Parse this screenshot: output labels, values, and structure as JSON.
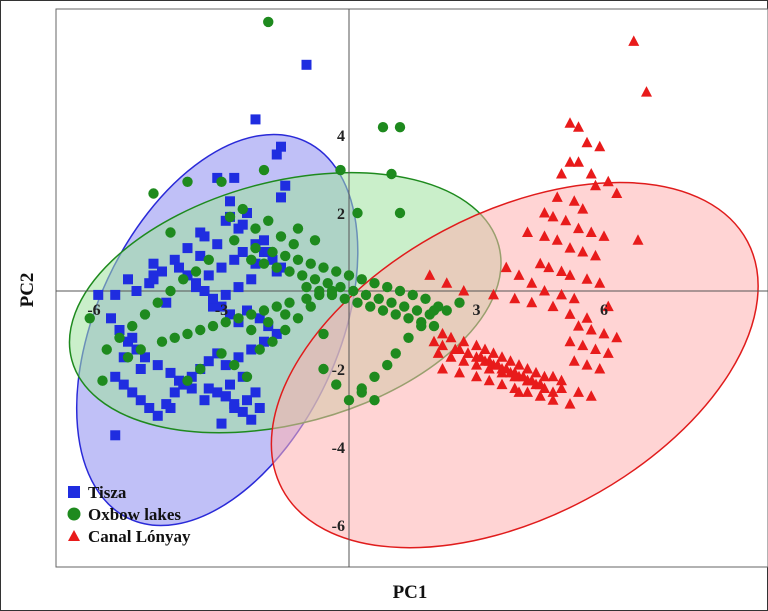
{
  "chart_data": {
    "type": "scatter",
    "xlabel": "PC1",
    "ylabel": "PC2",
    "xlim": [
      -7.3,
      10.4
    ],
    "ylim": [
      -7.2,
      7.1
    ],
    "x_ticks": [
      "-6",
      "-3",
      "3",
      "6"
    ],
    "x_tick_values": [
      -6,
      -3,
      3,
      6
    ],
    "y_ticks": [
      "4",
      "2",
      "-2",
      "-4",
      "-6"
    ],
    "y_tick_values": [
      4,
      2,
      -2,
      -4,
      -6
    ],
    "grid": false,
    "legend_position": "bottom-left",
    "colors": {
      "Tisza": "#1f2de0",
      "Oxbow lakes": "#1e8a1e",
      "Canal Lónyay": "#e81b1b"
    },
    "ellipses": [
      {
        "series": "Tisza",
        "cx": -3.1,
        "cy": -1.0,
        "rx": 4.9,
        "ry": 3.1,
        "angle": 65,
        "fill": "#8c8cf0",
        "stroke": "#2a2ad8"
      },
      {
        "series": "Oxbow lakes",
        "cx": -1.5,
        "cy": -0.3,
        "rx": 5.2,
        "ry": 3.1,
        "angle": 15,
        "fill": "#9fe19f",
        "stroke": "#1e8a1e"
      },
      {
        "series": "Canal Lónyay",
        "cx": 3.9,
        "cy": -1.9,
        "rx": 6.2,
        "ry": 3.9,
        "angle": 28,
        "fill": "#ffb0b0",
        "stroke": "#e01c1c"
      }
    ],
    "series": [
      {
        "name": "Tisza",
        "marker": "square",
        "x": [
          -1.0,
          -1.6,
          -1.7,
          -2.2,
          -3.1,
          -2.7,
          -1.5,
          -1.6,
          -2.8,
          -2.4,
          -2.9,
          -2.6,
          -3.4,
          -3.1,
          -4.6,
          -5.2,
          -5.0,
          -5.5,
          -5.9,
          -4.6,
          -3.5,
          -3.8,
          -4.1,
          -4.4,
          -4.7,
          -4.3,
          -3.6,
          -3.3,
          -3.0,
          -2.7,
          -2.5,
          -2.2,
          -2.0,
          -1.8,
          -1.6,
          -2.3,
          -2.6,
          -2.9,
          -3.2,
          -2.4,
          -2.1,
          -1.9,
          -1.7,
          -2.0,
          -2.3,
          -2.6,
          -2.9,
          -2.5,
          -2.8,
          -3.1,
          -3.4,
          -3.7,
          -4.0,
          -4.2,
          -4.5,
          -4.8,
          -5.0,
          -5.2,
          -5.4,
          -5.6,
          -5.5,
          -5.3,
          -5.1,
          -4.9,
          -4.7,
          -4.5,
          -4.3,
          -4.1,
          -3.9,
          -3.7,
          -3.5,
          -3.3,
          -3.1,
          -2.9,
          -2.7,
          -2.5,
          -2.3,
          -2.1,
          -2.6,
          -2.8,
          -3.0,
          -3.2,
          -3.4,
          -3.6,
          -3.8,
          -4.0,
          -4.6,
          -5.1,
          -5.3,
          -4.2,
          -3.3,
          -3.0,
          -2.7,
          -2.9,
          -2.4,
          -2.2,
          -2.8,
          -3.5,
          -2.5,
          -2.0,
          -1.9,
          -2.2,
          -1.7,
          -4.9,
          -5.5
        ],
        "y": [
          5.8,
          3.7,
          3.5,
          4.4,
          2.9,
          2.9,
          2.7,
          2.4,
          2.3,
          2.0,
          1.8,
          1.6,
          1.4,
          1.2,
          0.7,
          0.3,
          0.0,
          -0.1,
          -0.1,
          0.4,
          0.9,
          1.1,
          0.8,
          0.5,
          0.2,
          -0.3,
          0.1,
          0.4,
          0.6,
          0.8,
          1.0,
          1.2,
          1.0,
          0.8,
          0.6,
          0.3,
          0.1,
          -0.1,
          -0.4,
          -0.5,
          -0.7,
          -0.9,
          -1.1,
          -1.3,
          -1.5,
          -1.7,
          -1.9,
          -2.2,
          -2.4,
          -2.6,
          -2.8,
          -2.5,
          -2.3,
          -2.1,
          -1.9,
          -1.7,
          -1.5,
          -1.3,
          -1.0,
          -0.7,
          -2.2,
          -2.4,
          -2.6,
          -2.8,
          -3.0,
          -3.2,
          -2.9,
          -2.6,
          -2.4,
          -2.2,
          -2.0,
          -1.8,
          -1.6,
          -2.7,
          -2.9,
          -3.1,
          -3.3,
          -3.0,
          -0.8,
          -0.6,
          -0.4,
          -0.2,
          0.0,
          0.2,
          0.4,
          0.6,
          0.3,
          -1.2,
          -1.7,
          -3.0,
          -2.5,
          -3.4,
          -3.0,
          -2.7,
          -2.8,
          -2.6,
          1.9,
          1.5,
          1.7,
          1.3,
          1.0,
          0.7,
          0.5,
          -2.0,
          -3.7
        ]
      },
      {
        "name": "Oxbow lakes",
        "marker": "circle",
        "x": [
          -1.9,
          0.8,
          1.2,
          1.2,
          -4.6,
          -3.0,
          -2.0,
          -3.8,
          -4.2,
          -2.7,
          -2.2,
          -1.8,
          -1.5,
          -1.2,
          -0.9,
          -0.6,
          -0.3,
          0.0,
          0.3,
          0.6,
          0.9,
          1.2,
          1.5,
          1.8,
          2.1,
          2.3,
          -2.3,
          -2.0,
          -1.7,
          -1.4,
          -1.1,
          -0.8,
          -0.5,
          -0.2,
          0.1,
          0.4,
          0.7,
          1.0,
          1.3,
          1.6,
          1.9,
          2.6,
          -1.0,
          -0.7,
          -0.4,
          -0.1,
          0.2,
          0.5,
          0.8,
          1.1,
          1.4,
          1.7,
          2.0,
          -3.3,
          -3.6,
          -3.9,
          -4.2,
          -4.5,
          -4.8,
          -5.1,
          -5.4,
          -5.7,
          -6.1,
          -5.8,
          -5.2,
          -4.9,
          -4.4,
          -4.1,
          -3.8,
          -3.5,
          -3.2,
          -2.9,
          -2.6,
          -2.3,
          -2.0,
          -1.7,
          -1.4,
          -1.0,
          -0.7,
          -0.4,
          -3.0,
          -2.7,
          -2.4,
          -2.1,
          -1.8,
          -1.5,
          -1.2,
          -0.9,
          -0.6,
          -3.5,
          -3.8,
          -2.8,
          -2.5,
          -2.2,
          -1.9,
          -1.6,
          -1.3,
          0.2,
          2.0,
          1.7,
          1.4,
          1.1,
          0.9,
          0.6,
          0.3,
          0.0,
          -0.3,
          -0.6,
          -1.5,
          -1.9,
          -2.3,
          -0.2,
          0.6,
          0.3,
          1.0,
          -0.8,
          -1.2
        ],
        "y": [
          6.9,
          4.2,
          4.2,
          2.0,
          2.5,
          2.8,
          3.1,
          2.8,
          1.5,
          1.3,
          1.1,
          1.0,
          0.9,
          0.8,
          0.7,
          0.6,
          0.5,
          0.4,
          0.3,
          0.2,
          0.1,
          0.0,
          -0.1,
          -0.2,
          -0.4,
          -0.5,
          0.8,
          0.7,
          0.6,
          0.5,
          0.4,
          0.3,
          0.2,
          0.1,
          0.0,
          -0.1,
          -0.2,
          -0.3,
          -0.4,
          -0.5,
          -0.6,
          -0.3,
          0.1,
          0.0,
          -0.1,
          -0.2,
          -0.3,
          -0.4,
          -0.5,
          -0.6,
          -0.7,
          -0.8,
          -0.9,
          0.8,
          0.5,
          0.3,
          0.0,
          -0.3,
          -0.6,
          -0.9,
          -1.2,
          -1.5,
          -0.7,
          -2.3,
          -1.7,
          -1.5,
          -1.3,
          -1.2,
          -1.1,
          -1.0,
          -0.9,
          -0.8,
          -0.7,
          -0.6,
          -0.5,
          -0.4,
          -0.3,
          -0.2,
          -0.1,
          0.0,
          -1.6,
          -1.9,
          -2.2,
          -1.5,
          -1.3,
          -1.0,
          -0.7,
          -0.4,
          -1.1,
          -2.0,
          -2.3,
          1.9,
          2.1,
          1.6,
          1.8,
          1.4,
          1.2,
          2.0,
          -0.5,
          -0.9,
          -1.2,
          -1.6,
          -1.9,
          -2.2,
          -2.5,
          -2.8,
          -2.4,
          -2.0,
          -0.6,
          -0.8,
          -1.0,
          3.1,
          -2.8,
          -2.6,
          3.0,
          1.3,
          1.6
        ]
      },
      {
        "name": "Canal Lónyay",
        "marker": "triangle",
        "x": [
          6.7,
          7.0,
          5.2,
          5.4,
          5.6,
          5.9,
          5.2,
          5.4,
          5.0,
          5.7,
          6.1,
          5.8,
          4.9,
          5.3,
          5.5,
          6.3,
          4.6,
          4.8,
          5.1,
          5.4,
          5.7,
          6.0,
          6.8,
          4.2,
          4.6,
          4.9,
          5.2,
          5.5,
          5.8,
          4.5,
          4.7,
          5.0,
          5.2,
          5.6,
          5.9,
          3.7,
          4.0,
          4.3,
          4.6,
          5.0,
          5.3,
          6.1,
          3.4,
          3.9,
          4.3,
          4.8,
          5.2,
          5.6,
          2.4,
          2.7,
          3.0,
          3.2,
          3.4,
          3.6,
          3.8,
          4.0,
          4.2,
          4.4,
          4.6,
          4.8,
          5.0,
          5.4,
          5.7,
          6.0,
          6.3,
          2.6,
          2.8,
          3.0,
          3.2,
          3.4,
          3.6,
          3.8,
          4.0,
          4.2,
          4.4,
          4.6,
          4.8,
          5.2,
          5.5,
          5.8,
          6.1,
          2.2,
          2.5,
          2.8,
          3.1,
          3.3,
          3.5,
          3.7,
          3.9,
          4.1,
          4.3,
          4.5,
          5.3,
          5.6,
          5.9,
          2.1,
          2.4,
          2.7,
          3.0,
          3.3,
          3.6,
          3.9,
          4.2,
          4.5,
          5.0,
          5.4,
          5.7,
          2.2,
          2.6,
          3.0,
          3.3,
          3.6,
          3.9,
          4.2,
          4.5,
          4.8,
          5.2,
          2.0,
          2.2,
          4.0,
          1.9,
          2.3,
          2.7
        ],
        "y": [
          6.4,
          5.1,
          4.3,
          4.2,
          3.8,
          3.7,
          3.3,
          3.3,
          3.0,
          3.0,
          2.8,
          2.7,
          2.4,
          2.3,
          2.1,
          2.5,
          2.0,
          1.9,
          1.8,
          1.6,
          1.5,
          1.4,
          1.3,
          1.5,
          1.4,
          1.3,
          1.1,
          1.0,
          0.9,
          0.7,
          0.6,
          0.5,
          0.4,
          0.3,
          0.2,
          0.6,
          0.4,
          0.2,
          0.0,
          -0.1,
          -0.2,
          -0.4,
          -0.1,
          -0.2,
          -0.3,
          -0.4,
          -0.6,
          -0.7,
          -1.2,
          -1.3,
          -1.4,
          -1.5,
          -1.6,
          -1.7,
          -1.8,
          -1.9,
          -2.0,
          -2.1,
          -2.2,
          -2.2,
          -2.3,
          -0.9,
          -1.0,
          -1.1,
          -1.2,
          -1.5,
          -1.6,
          -1.7,
          -1.8,
          -1.9,
          -2.0,
          -2.1,
          -2.2,
          -2.3,
          -2.4,
          -2.5,
          -2.6,
          -1.3,
          -1.4,
          -1.5,
          -1.6,
          -1.4,
          -1.5,
          -1.6,
          -1.7,
          -1.8,
          -1.9,
          -2.0,
          -2.1,
          -2.2,
          -2.3,
          -2.4,
          -1.8,
          -1.9,
          -2.0,
          -1.6,
          -1.7,
          -1.8,
          -1.9,
          -2.0,
          -2.1,
          -2.2,
          -2.3,
          -2.4,
          -2.5,
          -2.6,
          -2.7,
          -2.0,
          -2.1,
          -2.2,
          -2.3,
          -2.4,
          -2.5,
          -2.6,
          -2.7,
          -2.8,
          -2.9,
          -1.3,
          -1.1,
          -2.6,
          0.4,
          0.2,
          0.0
        ]
      }
    ]
  },
  "legend": {
    "items": [
      {
        "label": "Tisza",
        "marker": "square",
        "color": "#1f2de0"
      },
      {
        "label": "Oxbow lakes",
        "marker": "circle",
        "color": "#1e8a1e"
      },
      {
        "label": "Canal Lónyay",
        "marker": "triangle",
        "color": "#e81b1b"
      }
    ]
  }
}
